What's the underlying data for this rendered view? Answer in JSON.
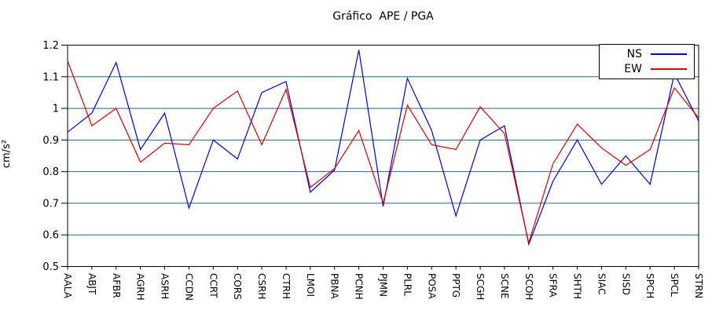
{
  "chart_data": {
    "type": "line",
    "title": "Gráfico  APE / PGA",
    "xlabel": "",
    "ylabel": "cm/s²",
    "ylim": [
      0.5,
      1.2
    ],
    "ytick_labels": [
      "0.5",
      "0.6",
      "0.7",
      "0.8",
      "0.9",
      "1",
      "1.1",
      "1.2"
    ],
    "grid": true,
    "legend_position": "top-right-inside",
    "categories": [
      "AALA",
      "ABJT",
      "AFBR",
      "AGRH",
      "ASRH",
      "CCDN",
      "CCRT",
      "CORS",
      "CSRH",
      "CTRH",
      "LMOI",
      "PBNA",
      "PCNH",
      "PJMN",
      "PLRL",
      "POSA",
      "PPTG",
      "SCGH",
      "SCNE",
      "SCOH",
      "SFRA",
      "SHTH",
      "SIAC",
      "SISD",
      "SPCH",
      "SPCL",
      "STRN"
    ],
    "series": [
      {
        "name": "NS",
        "color": "#0000dd",
        "values": [
          0.925,
          0.985,
          1.145,
          0.87,
          0.985,
          0.685,
          0.9,
          0.84,
          1.05,
          1.085,
          0.735,
          0.805,
          1.185,
          0.69,
          1.095,
          0.93,
          0.66,
          0.9,
          0.945,
          0.57,
          0.77,
          0.9,
          0.76,
          0.85,
          0.76,
          1.11,
          0.96
        ]
      },
      {
        "name": "EW",
        "color": "#dd0000",
        "values": [
          1.15,
          0.945,
          1.0,
          0.83,
          0.89,
          0.885,
          1.0,
          1.055,
          0.885,
          1.06,
          0.75,
          0.81,
          0.93,
          0.7,
          1.01,
          0.885,
          0.87,
          1.005,
          0.92,
          0.575,
          0.825,
          0.95,
          0.875,
          0.82,
          0.87,
          1.065,
          0.97
        ]
      }
    ],
    "colors": {
      "grid": "#2f6580",
      "axis": "#000000",
      "tick_text": "#000000"
    }
  }
}
